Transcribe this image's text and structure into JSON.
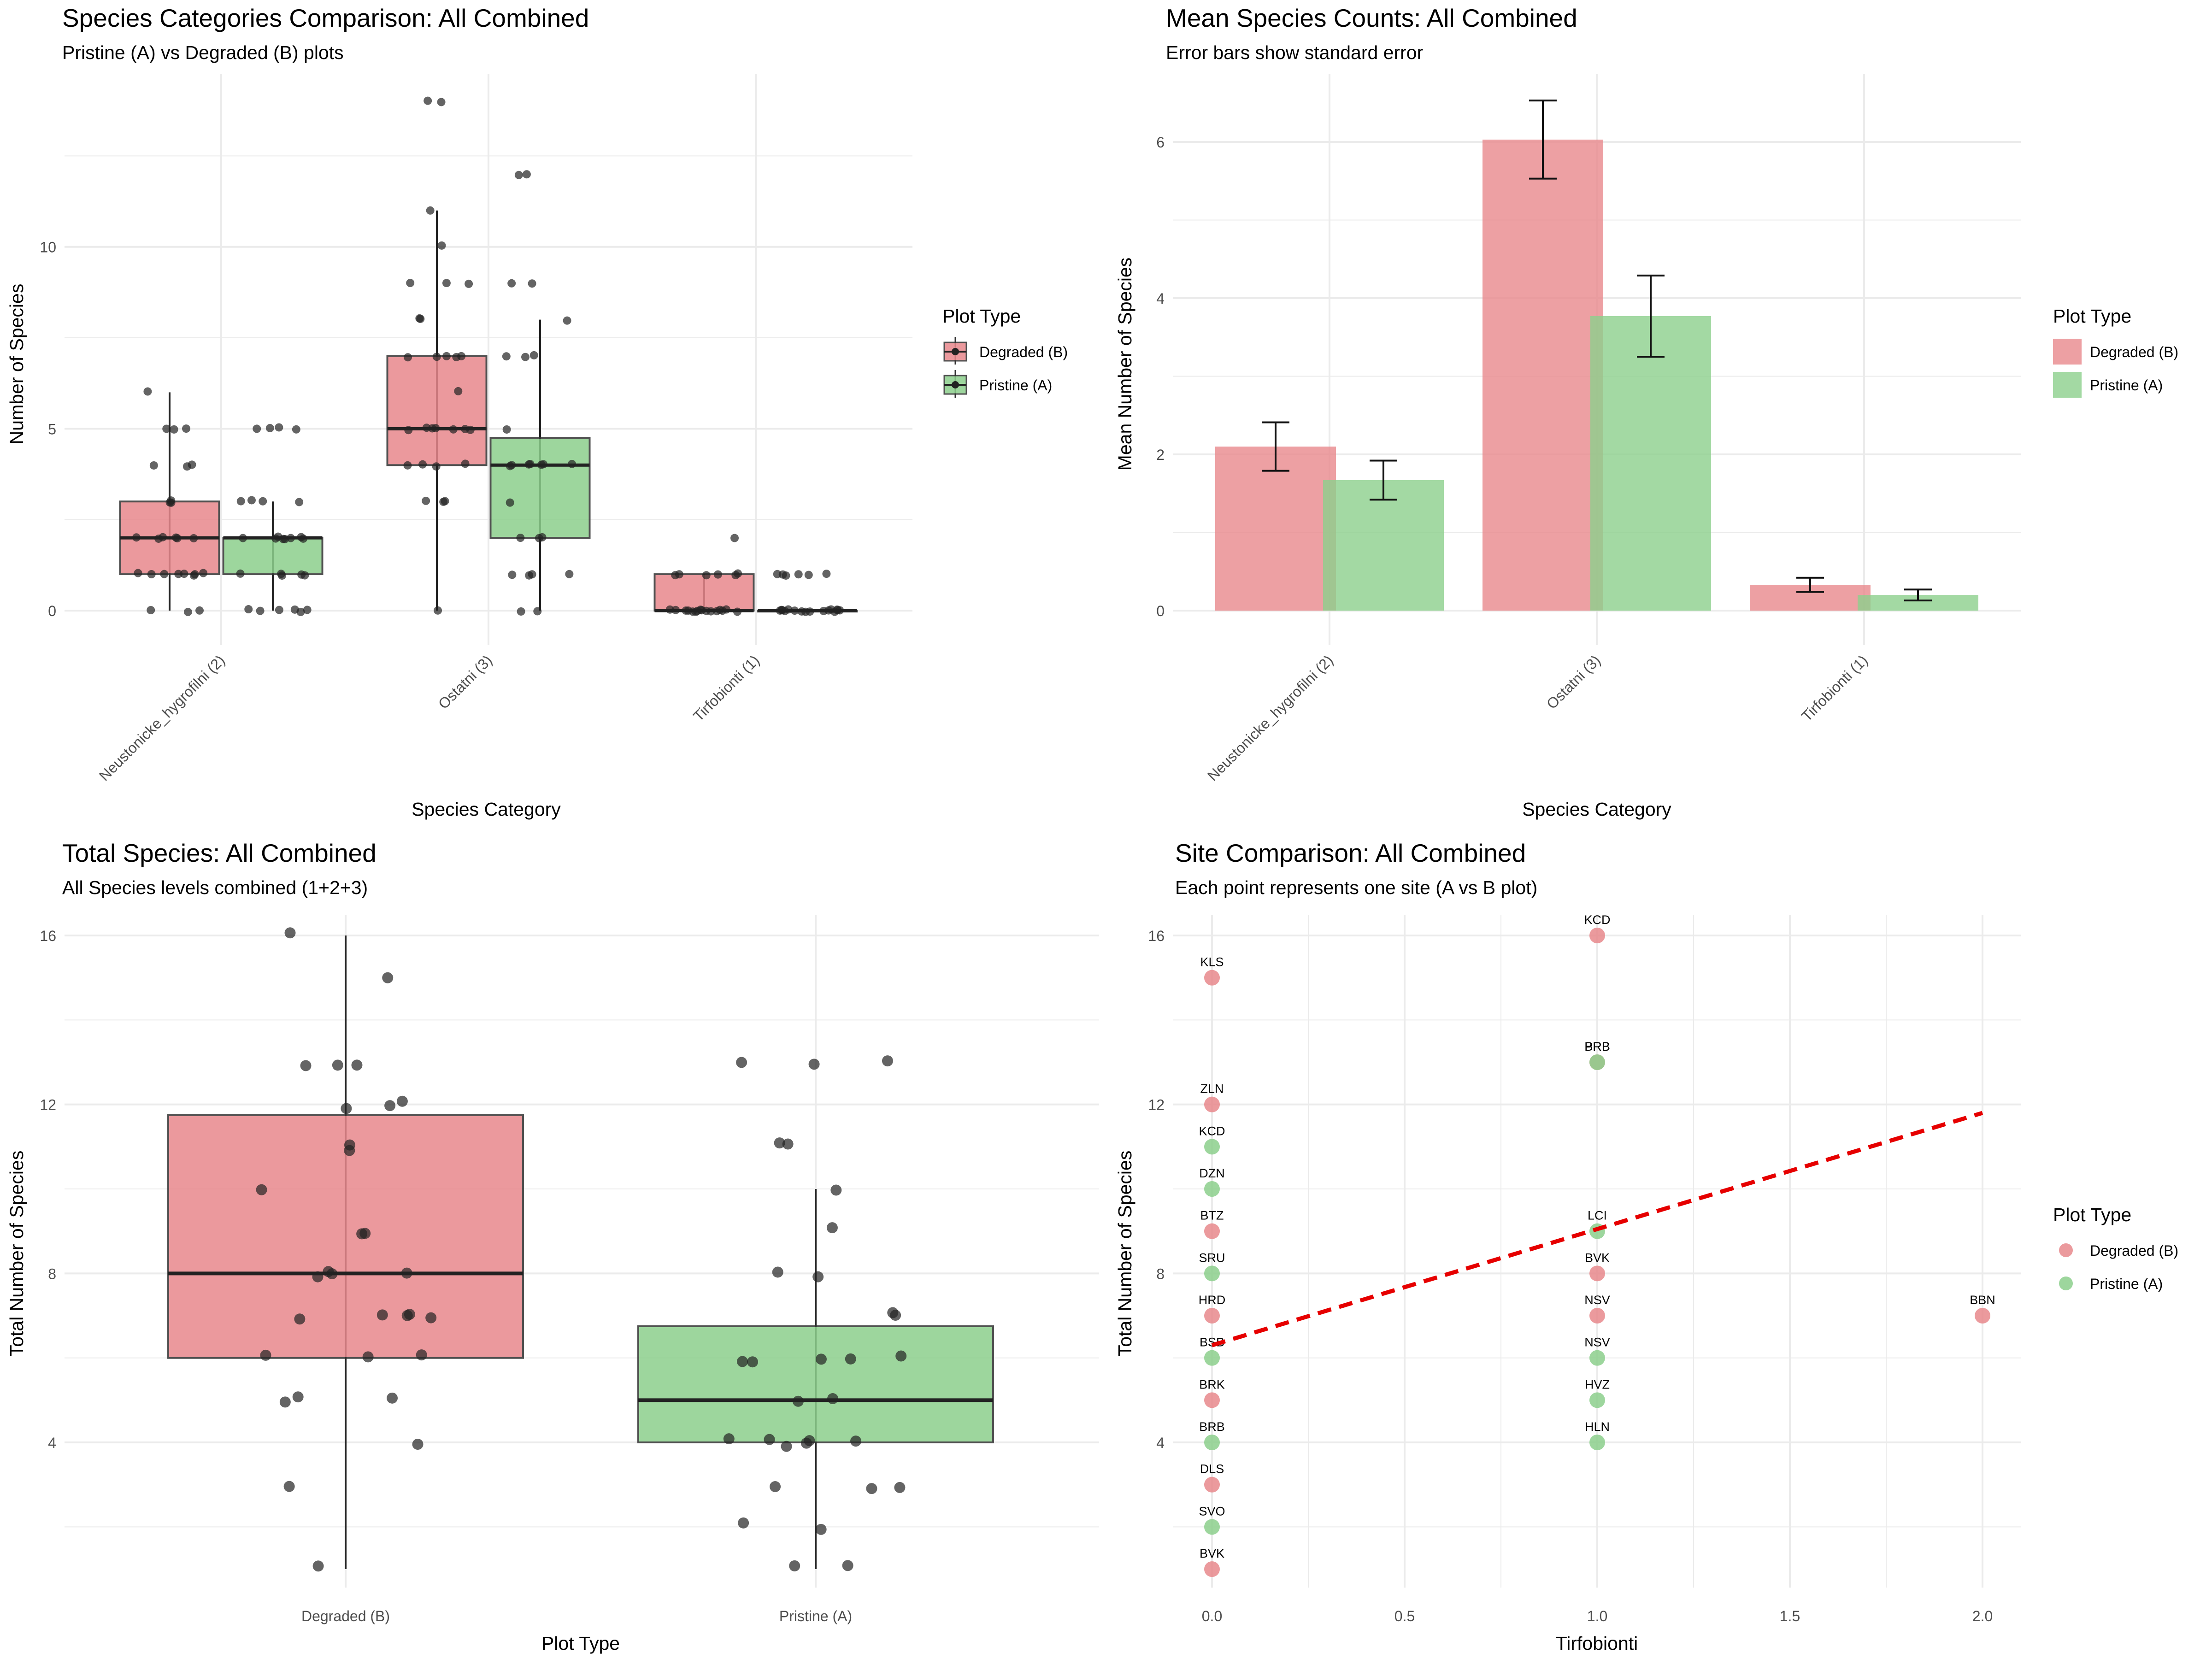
{
  "colors": {
    "degraded": "#E8888C",
    "pristine": "#8CCF8C",
    "trend": "#E60000",
    "grid": "#EBEBEB",
    "text": "#222222",
    "axis_text": "#4D4D4D"
  },
  "chart_data": [
    {
      "type": "box",
      "title": "Species Categories Comparison: All Combined",
      "subtitle": "Pristine (A) vs Degraded (B) plots",
      "xlabel": "Species Category",
      "ylabel": "Number of Species",
      "ylim": [
        0,
        14
      ],
      "yticks": [
        0,
        5,
        10
      ],
      "categories": [
        "Neustonicke_hygrofilni (2)",
        "Ostatni (3)",
        "Tirfobionti (1)"
      ],
      "legend": {
        "title": "Plot Type",
        "entries": [
          "Degraded (B)",
          "Pristine (A)"
        ],
        "position": "right"
      },
      "series": [
        {
          "name": "Degraded (B)",
          "boxes": [
            {
              "q1": 1,
              "median": 2,
              "q3": 3,
              "whisker_low": 0,
              "whisker_high": 6,
              "points": [
                6,
                5,
                5,
                5,
                4,
                4,
                4,
                3,
                3,
                3,
                2,
                2,
                2,
                2,
                2,
                2,
                1,
                1,
                1,
                1,
                1,
                1,
                1,
                1,
                0,
                0,
                0
              ]
            },
            {
              "q1": 4,
              "median": 5,
              "q3": 7,
              "whisker_low": 0,
              "whisker_high": 11,
              "points": [
                14,
                14,
                11,
                10,
                9,
                9,
                9,
                8,
                8,
                7,
                7,
                7,
                7,
                7,
                6,
                5,
                5,
                5,
                5,
                5,
                5,
                5,
                4,
                4,
                4,
                4,
                3,
                3,
                3,
                0
              ]
            },
            {
              "q1": 0,
              "median": 0,
              "q3": 1,
              "whisker_low": 0,
              "whisker_high": 1,
              "points": [
                2,
                1,
                1,
                1,
                1,
                1,
                1,
                0,
                0,
                0,
                0,
                0,
                0,
                0,
                0,
                0,
                0,
                0,
                0,
                0,
                0,
                0,
                0
              ]
            }
          ]
        },
        {
          "name": "Pristine (A)",
          "boxes": [
            {
              "q1": 1,
              "median": 2,
              "q3": 2,
              "whisker_low": 0,
              "whisker_high": 3,
              "points": [
                5,
                5,
                5,
                5,
                3,
                3,
                3,
                3,
                2,
                2,
                2,
                2,
                2,
                2,
                2,
                2,
                1,
                1,
                1,
                1,
                1,
                0,
                0,
                0,
                0,
                0,
                0
              ]
            },
            {
              "q1": 2,
              "median": 4,
              "q3": 4.75,
              "whisker_low": 0,
              "whisker_high": 8,
              "points": [
                12,
                12,
                9,
                9,
                8,
                7,
                7,
                7,
                5,
                4,
                4,
                4,
                4,
                4,
                4,
                4,
                3,
                2,
                2,
                2,
                1,
                1,
                1,
                1,
                0,
                0
              ]
            },
            {
              "q1": 0,
              "median": 0,
              "q3": 0,
              "whisker_low": 0,
              "whisker_high": 0,
              "points": [
                1,
                1,
                1,
                1,
                1,
                1,
                0,
                0,
                0,
                0,
                0,
                0,
                0,
                0,
                0,
                0,
                0,
                0,
                0,
                0,
                0,
                0
              ]
            }
          ]
        }
      ]
    },
    {
      "type": "bar",
      "title": "Mean Species Counts: All Combined",
      "subtitle": "Error bars show standard error",
      "xlabel": "Species Category",
      "ylabel": "Mean Number of Species",
      "ylim": [
        0,
        6.8
      ],
      "yticks": [
        0,
        2,
        4,
        6
      ],
      "categories": [
        "Neustonicke_hygrofilni (2)",
        "Ostatni (3)",
        "Tirfobionti (1)"
      ],
      "legend": {
        "title": "Plot Type",
        "entries": [
          "Degraded (B)",
          "Pristine (A)"
        ],
        "position": "right"
      },
      "series": [
        {
          "name": "Degraded (B)",
          "values": [
            2.1,
            6.03,
            0.33
          ],
          "se": [
            0.31,
            0.5,
            0.09
          ]
        },
        {
          "name": "Pristine (A)",
          "values": [
            1.67,
            3.77,
            0.2
          ],
          "se": [
            0.25,
            0.52,
            0.07
          ]
        }
      ]
    },
    {
      "type": "box",
      "title": "Total Species: All Combined",
      "subtitle": "All Species levels combined (1+2+3)",
      "xlabel": "Plot Type",
      "ylabel": "Total Number of Species",
      "ylim": [
        0.5,
        16.5
      ],
      "yticks": [
        4,
        8,
        12,
        16
      ],
      "categories": [
        "Degraded (B)",
        "Pristine (A)"
      ],
      "boxes": [
        {
          "name": "Degraded (B)",
          "q1": 6,
          "median": 8,
          "q3": 11.75,
          "whisker_low": 1,
          "whisker_high": 16,
          "points": [
            16,
            15,
            13,
            13,
            13,
            12,
            12,
            12,
            11,
            11,
            10,
            9,
            9,
            8,
            8,
            8,
            8,
            7,
            7,
            7,
            7,
            7,
            6,
            6,
            6,
            5,
            5,
            5,
            4,
            3,
            1
          ]
        },
        {
          "name": "Pristine (A)",
          "q1": 4,
          "median": 5,
          "q3": 6.75,
          "whisker_low": 1,
          "whisker_high": 10,
          "points": [
            13,
            13,
            13,
            11,
            11,
            10,
            9,
            8,
            8,
            7,
            7,
            6,
            6,
            6,
            6,
            6,
            5,
            5,
            4,
            4,
            4,
            4,
            4,
            4,
            3,
            3,
            3,
            2,
            2,
            1,
            1
          ]
        }
      ]
    },
    {
      "type": "scatter",
      "title": "Site Comparison: All Combined",
      "subtitle": "Each point represents one site (A vs B plot)",
      "xlabel": "Tirfobionti",
      "ylabel": "Total Number of Species",
      "xlim": [
        -0.05,
        2.1
      ],
      "ylim": [
        0.6,
        16.6
      ],
      "xticks": [
        0,
        0.5,
        1,
        1.5,
        2
      ],
      "yticks": [
        4,
        8,
        12,
        16
      ],
      "legend": {
        "title": "Plot Type",
        "entries": [
          "Degraded (B)",
          "Pristine (A)"
        ],
        "position": "right"
      },
      "trend": {
        "x": [
          0,
          2
        ],
        "y": [
          6.3,
          11.8
        ]
      },
      "points": [
        {
          "x": 1,
          "y": 16,
          "group": "Degraded (B)",
          "label": "KCD"
        },
        {
          "x": 0,
          "y": 15,
          "group": "Degraded (B)",
          "label": "KLS"
        },
        {
          "x": 1,
          "y": 13,
          "group": "Degraded (B)",
          "label": "PRB"
        },
        {
          "x": 1,
          "y": 13,
          "group": "Pristine (A)",
          "label": "BRB"
        },
        {
          "x": 0,
          "y": 12,
          "group": "Degraded (B)",
          "label": "ZLN"
        },
        {
          "x": 0,
          "y": 11,
          "group": "Pristine (A)",
          "label": "KCD"
        },
        {
          "x": 0,
          "y": 10,
          "group": "Pristine (A)",
          "label": "DZN"
        },
        {
          "x": 0,
          "y": 9,
          "group": "Degraded (B)",
          "label": "BTZ"
        },
        {
          "x": 1,
          "y": 9,
          "group": "Pristine (A)",
          "label": "LCI"
        },
        {
          "x": 0,
          "y": 8,
          "group": "Pristine (A)",
          "label": "SRU"
        },
        {
          "x": 1,
          "y": 8,
          "group": "Degraded (B)",
          "label": "BVK"
        },
        {
          "x": 0,
          "y": 7,
          "group": "Degraded (B)",
          "label": "HRD"
        },
        {
          "x": 1,
          "y": 7,
          "group": "Degraded (B)",
          "label": "NSV"
        },
        {
          "x": 2,
          "y": 7,
          "group": "Degraded (B)",
          "label": "BBN"
        },
        {
          "x": 0,
          "y": 6,
          "group": "Pristine (A)",
          "label": "BSB"
        },
        {
          "x": 1,
          "y": 6,
          "group": "Pristine (A)",
          "label": "NSV"
        },
        {
          "x": 0,
          "y": 5,
          "group": "Degraded (B)",
          "label": "BRK"
        },
        {
          "x": 1,
          "y": 5,
          "group": "Pristine (A)",
          "label": "HVZ"
        },
        {
          "x": 0,
          "y": 4,
          "group": "Pristine (A)",
          "label": "BRB"
        },
        {
          "x": 1,
          "y": 4,
          "group": "Pristine (A)",
          "label": "HLN"
        },
        {
          "x": 0,
          "y": 3,
          "group": "Degraded (B)",
          "label": "DLS"
        },
        {
          "x": 0,
          "y": 2,
          "group": "Pristine (A)",
          "label": "SVO"
        },
        {
          "x": 0,
          "y": 1,
          "group": "Degraded (B)",
          "label": "BVK"
        }
      ]
    }
  ]
}
